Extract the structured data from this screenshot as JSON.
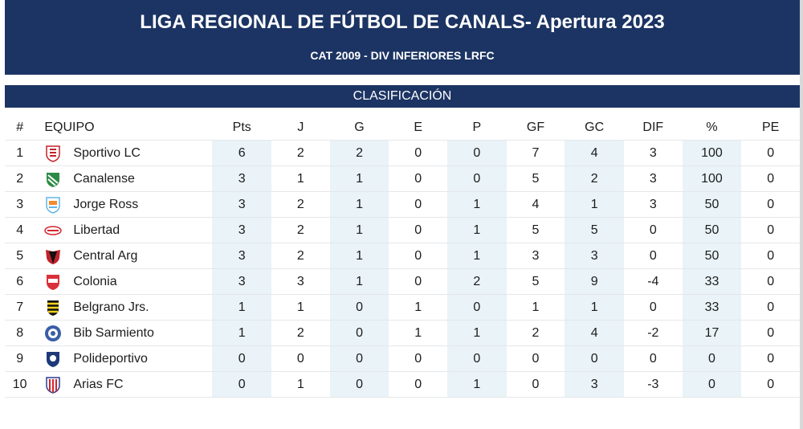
{
  "header": {
    "title": "LIGA REGIONAL DE FÚTBOL DE CANALS- Apertura 2023",
    "subtitle": "CAT 2009 - DIV INFERIORES LRFC"
  },
  "section": {
    "label": "CLASIFICACIÓN"
  },
  "columns": [
    "#",
    "EQUIPO",
    "Pts",
    "J",
    "G",
    "E",
    "P",
    "GF",
    "GC",
    "DIF",
    "%",
    "PE"
  ],
  "rows": [
    {
      "pos": "1",
      "team": "Sportivo LC",
      "crest": "sportivo-lc-crest-icon",
      "pts": "6",
      "j": "2",
      "g": "2",
      "e": "0",
      "p": "0",
      "gf": "7",
      "gc": "4",
      "dif": "3",
      "pct": "100",
      "pe": "0"
    },
    {
      "pos": "2",
      "team": "Canalense",
      "crest": "canalense-crest-icon",
      "pts": "3",
      "j": "1",
      "g": "1",
      "e": "0",
      "p": "0",
      "gf": "5",
      "gc": "2",
      "dif": "3",
      "pct": "100",
      "pe": "0"
    },
    {
      "pos": "3",
      "team": "Jorge Ross",
      "crest": "jorge-ross-crest-icon",
      "pts": "3",
      "j": "2",
      "g": "1",
      "e": "0",
      "p": "1",
      "gf": "4",
      "gc": "1",
      "dif": "3",
      "pct": "50",
      "pe": "0"
    },
    {
      "pos": "4",
      "team": "Libertad",
      "crest": "libertad-crest-icon",
      "pts": "3",
      "j": "2",
      "g": "1",
      "e": "0",
      "p": "1",
      "gf": "5",
      "gc": "5",
      "dif": "0",
      "pct": "50",
      "pe": "0"
    },
    {
      "pos": "5",
      "team": "Central Arg",
      "crest": "central-arg-crest-icon",
      "pts": "3",
      "j": "2",
      "g": "1",
      "e": "0",
      "p": "1",
      "gf": "3",
      "gc": "3",
      "dif": "0",
      "pct": "50",
      "pe": "0"
    },
    {
      "pos": "6",
      "team": "Colonia",
      "crest": "colonia-crest-icon",
      "pts": "3",
      "j": "3",
      "g": "1",
      "e": "0",
      "p": "2",
      "gf": "5",
      "gc": "9",
      "dif": "-4",
      "pct": "33",
      "pe": "0"
    },
    {
      "pos": "7",
      "team": "Belgrano Jrs.",
      "crest": "belgrano-jrs-crest-icon",
      "pts": "1",
      "j": "1",
      "g": "0",
      "e": "1",
      "p": "0",
      "gf": "1",
      "gc": "1",
      "dif": "0",
      "pct": "33",
      "pe": "0"
    },
    {
      "pos": "8",
      "team": "Bib Sarmiento",
      "crest": "bib-sarmiento-crest-icon",
      "pts": "1",
      "j": "2",
      "g": "0",
      "e": "1",
      "p": "1",
      "gf": "2",
      "gc": "4",
      "dif": "-2",
      "pct": "17",
      "pe": "0"
    },
    {
      "pos": "9",
      "team": "Polideportivo",
      "crest": "polideportivo-crest-icon",
      "pts": "0",
      "j": "0",
      "g": "0",
      "e": "0",
      "p": "0",
      "gf": "0",
      "gc": "0",
      "dif": "0",
      "pct": "0",
      "pe": "0"
    },
    {
      "pos": "10",
      "team": "Arias FC",
      "crest": "arias-fc-crest-icon",
      "pts": "0",
      "j": "1",
      "g": "0",
      "e": "0",
      "p": "1",
      "gf": "0",
      "gc": "3",
      "dif": "-3",
      "pct": "0",
      "pe": "0"
    }
  ],
  "colors": {
    "header_bg": "#1c3463",
    "shade": "#e9f3f8",
    "text": "#1c1c1c"
  }
}
